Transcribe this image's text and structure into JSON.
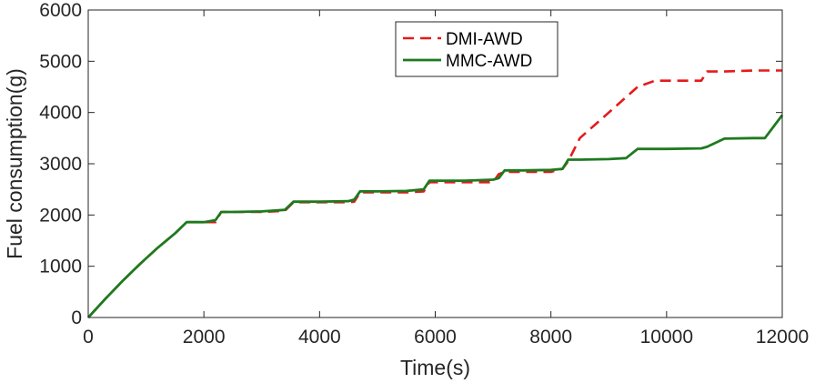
{
  "chart_data": {
    "type": "line",
    "title": "",
    "xlabel": "Time(s)",
    "ylabel": "Fuel consumption(g)",
    "xlim": [
      0,
      12000
    ],
    "ylim": [
      0,
      6000
    ],
    "xticks": [
      0,
      2000,
      4000,
      6000,
      8000,
      10000,
      12000
    ],
    "yticks": [
      0,
      1000,
      2000,
      3000,
      4000,
      5000,
      6000
    ],
    "grid": false,
    "legend_position": "top-center",
    "series": [
      {
        "name": "DMI-AWD",
        "color": "#e41a1c",
        "style": "dashed",
        "x": [
          0,
          300,
          600,
          900,
          1200,
          1500,
          1700,
          2000,
          2200,
          2300,
          2500,
          3000,
          3400,
          3550,
          4000,
          4500,
          4600,
          4700,
          5000,
          5500,
          5800,
          5900,
          6500,
          7000,
          7100,
          7200,
          7500,
          8000,
          8200,
          8300,
          8500,
          9000,
          9500,
          9800,
          10000,
          10600,
          10700,
          11000,
          11500,
          12000
        ],
        "y": [
          0,
          370,
          720,
          1050,
          1360,
          1640,
          1860,
          1860,
          1860,
          2060,
          2060,
          2060,
          2080,
          2250,
          2250,
          2250,
          2260,
          2440,
          2440,
          2440,
          2460,
          2640,
          2640,
          2640,
          2800,
          2840,
          2840,
          2840,
          2900,
          3050,
          3500,
          4000,
          4500,
          4620,
          4620,
          4620,
          4800,
          4800,
          4820,
          4820
        ]
      },
      {
        "name": "MMC-AWD",
        "color": "#1e7a1e",
        "style": "solid",
        "x": [
          0,
          300,
          600,
          900,
          1200,
          1500,
          1700,
          2000,
          2200,
          2300,
          2500,
          3000,
          3400,
          3550,
          4000,
          4500,
          4600,
          4700,
          5000,
          5500,
          5800,
          5900,
          6500,
          7000,
          7100,
          7200,
          7500,
          8000,
          8200,
          8300,
          8500,
          9000,
          9300,
          9500,
          10000,
          10600,
          10700,
          11000,
          11500,
          11700,
          12000
        ],
        "y": [
          0,
          370,
          720,
          1050,
          1360,
          1640,
          1860,
          1860,
          1900,
          2060,
          2060,
          2070,
          2100,
          2260,
          2260,
          2270,
          2300,
          2460,
          2460,
          2470,
          2500,
          2670,
          2670,
          2690,
          2720,
          2870,
          2870,
          2880,
          2900,
          3080,
          3080,
          3090,
          3110,
          3290,
          3290,
          3300,
          3330,
          3490,
          3500,
          3500,
          3950
        ]
      }
    ]
  }
}
